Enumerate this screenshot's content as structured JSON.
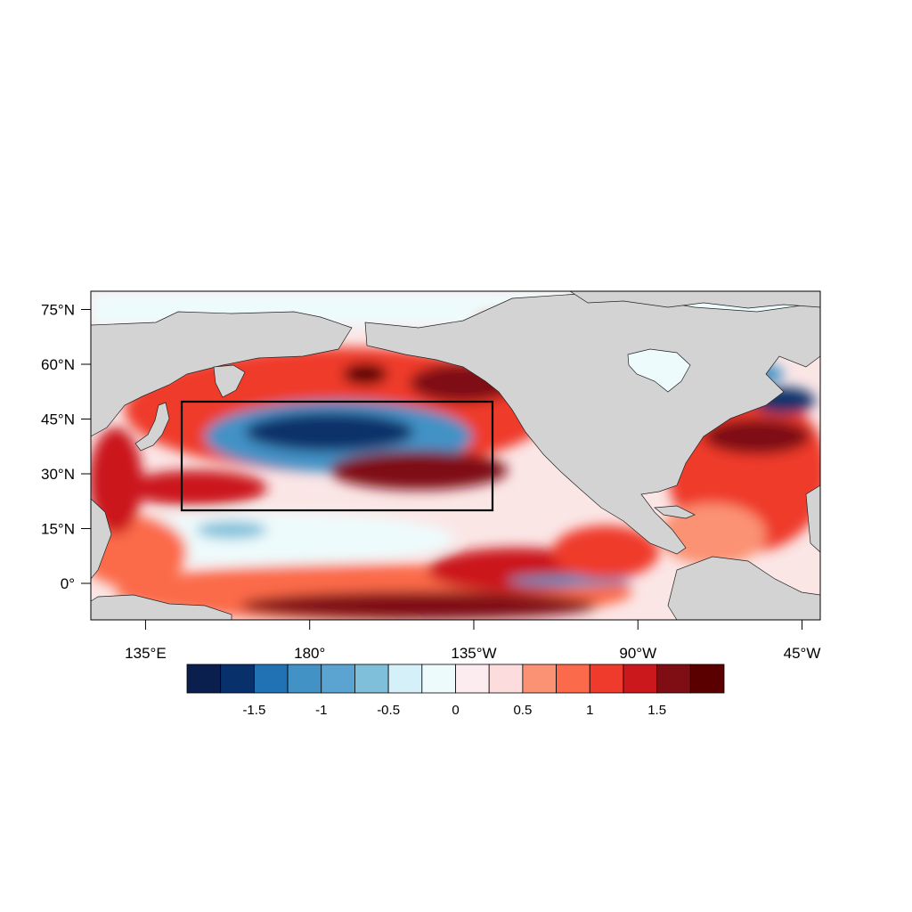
{
  "map": {
    "lat_ticks": [
      {
        "value": 75,
        "label": "75°N"
      },
      {
        "value": 60,
        "label": "60°N"
      },
      {
        "value": 45,
        "label": "45°N"
      },
      {
        "value": 30,
        "label": "30°N"
      },
      {
        "value": 15,
        "label": "15°N"
      },
      {
        "value": 0,
        "label": "0°"
      }
    ],
    "lon_ticks": [
      {
        "value": 135,
        "label": "135°E"
      },
      {
        "value": 180,
        "label": "180°"
      },
      {
        "value": 225,
        "label": "135°W"
      },
      {
        "value": 270,
        "label": "90°W"
      },
      {
        "value": 315,
        "label": "45°W"
      }
    ],
    "extent": {
      "lon_min": 120,
      "lon_max": 320,
      "lat_min": -10,
      "lat_max": 80
    },
    "box": {
      "lon_min": 145,
      "lon_max": 230,
      "lat_min": 20,
      "lat_max": 50
    },
    "land_color": "#d3d3d3"
  },
  "colorbar": {
    "levels": [
      -2,
      -1.75,
      -1.5,
      -1.25,
      -1,
      -0.75,
      -0.5,
      -0.25,
      0,
      0.25,
      0.5,
      0.75,
      1,
      1.25,
      1.5,
      1.75,
      2
    ],
    "colors": [
      "#0a1f4e",
      "#08306b",
      "#2171b5",
      "#4292c6",
      "#5ba3d0",
      "#7fbfd9",
      "#d6f0fa",
      "#eefbfc",
      "#fdecef",
      "#fcdcdc",
      "#fb9273",
      "#fb6a4a",
      "#ef3b2c",
      "#cb181d",
      "#7f0e14",
      "#5a0000"
    ],
    "labels": [
      {
        "value": -1.5,
        "label": "-1.5"
      },
      {
        "value": -1,
        "label": "-1"
      },
      {
        "value": -0.5,
        "label": "-0.5"
      },
      {
        "value": 0,
        "label": "0"
      },
      {
        "value": 0.5,
        "label": "0.5"
      },
      {
        "value": 1,
        "label": "1"
      },
      {
        "value": 1.5,
        "label": "1.5"
      }
    ]
  }
}
